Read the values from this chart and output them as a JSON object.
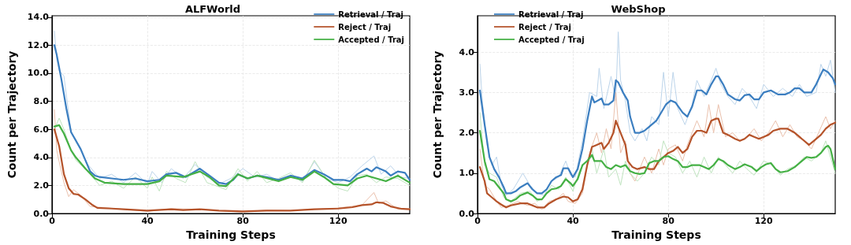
{
  "chart_data": [
    {
      "type": "line",
      "title": "ALFWorld",
      "xlabel": "Training Steps",
      "ylabel": "Count per Trajectory",
      "xlim": [
        0,
        150
      ],
      "xticks": [
        0,
        40,
        80,
        120
      ],
      "ylim": [
        0,
        14.1
      ],
      "yticks": [
        {
          "value": 0,
          "label": "0.0"
        },
        {
          "value": 2,
          "label": "2.0"
        },
        {
          "value": 4,
          "label": "4.0"
        },
        {
          "value": 6,
          "label": "6.0"
        },
        {
          "value": 8,
          "label": "8.0"
        },
        {
          "value": 10,
          "label": "10.0"
        },
        {
          "value": 12,
          "label": "12.0"
        },
        {
          "value": 14,
          "label": "14.0"
        }
      ],
      "grid": true,
      "legend": "top right",
      "marker": "none",
      "line_style": "solid",
      "series": [
        {
          "color": "#bcd4ea",
          "x": [
            1,
            2,
            3,
            5,
            8,
            10,
            15,
            20,
            25,
            30,
            35,
            40,
            42,
            46,
            50,
            55,
            60,
            65,
            70,
            75,
            80,
            85,
            90,
            95,
            100,
            105,
            110,
            115,
            120,
            125,
            130,
            135,
            138,
            142,
            146,
            150
          ],
          "values": [
            13,
            11,
            10.2,
            9.8,
            5.8,
            5.3,
            3.5,
            2.5,
            2.8,
            2.2,
            2.9,
            2.1,
            3.0,
            2.2,
            3.2,
            2.5,
            3.5,
            2.6,
            2.1,
            2.5,
            3.2,
            2.6,
            2.8,
            2.3,
            2.7,
            2.3,
            3.7,
            2.5,
            2.2,
            2.6,
            3.4,
            4.1,
            2.8,
            3.4,
            2.6,
            2.5
          ]
        },
        {
          "color": "#eac0ac",
          "x": [
            1,
            2,
            3,
            5,
            7,
            9,
            12,
            16,
            20,
            30,
            40,
            50,
            60,
            70,
            80,
            90,
            100,
            110,
            120,
            130,
            135,
            137,
            140,
            145,
            150
          ],
          "values": [
            7.4,
            4.5,
            3.7,
            2.2,
            1.2,
            1.7,
            1.3,
            0.5,
            0.45,
            0.3,
            0.15,
            0.35,
            0.3,
            0.2,
            0.1,
            0.25,
            0.2,
            0.3,
            0.4,
            0.6,
            1.5,
            0.7,
            0.9,
            0.3,
            0.35
          ]
        },
        {
          "color": "#bfe3bf",
          "x": [
            1,
            3,
            5,
            8,
            10,
            15,
            20,
            25,
            30,
            35,
            40,
            42,
            45,
            48,
            52,
            56,
            60,
            65,
            70,
            73,
            78,
            82,
            86,
            90,
            95,
            100,
            105,
            110,
            115,
            120,
            124,
            128,
            132,
            136,
            140,
            145,
            150
          ],
          "values": [
            6.0,
            6.8,
            6.0,
            4.5,
            3.8,
            3.0,
            2.0,
            2.3,
            1.8,
            2.6,
            1.8,
            2.6,
            1.6,
            3.0,
            2.5,
            2.2,
            3.7,
            2.2,
            1.9,
            1.7,
            3.2,
            2.3,
            3.0,
            2.2,
            2.5,
            2.9,
            2.2,
            3.8,
            2.5,
            1.8,
            1.6,
            2.7,
            2.8,
            2.2,
            2.6,
            2.5,
            2.0
          ]
        },
        {
          "name": "Retrieval / Traj",
          "color": "#3b7ec0",
          "x": [
            1,
            2,
            4,
            6,
            8,
            10,
            12,
            14,
            16,
            18,
            20,
            25,
            30,
            35,
            40,
            45,
            48,
            52,
            56,
            62,
            66,
            70,
            73,
            76,
            78,
            82,
            86,
            90,
            95,
            100,
            105,
            110,
            114,
            118,
            122,
            125,
            128,
            132,
            134,
            136,
            140,
            142,
            145,
            148,
            150
          ],
          "values": [
            12,
            11.3,
            9.5,
            7.5,
            5.8,
            5.2,
            4.6,
            3.8,
            3.0,
            2.7,
            2.6,
            2.5,
            2.4,
            2.5,
            2.3,
            2.4,
            2.8,
            2.9,
            2.6,
            3.2,
            2.7,
            2.2,
            2.1,
            2.4,
            2.8,
            2.5,
            2.7,
            2.6,
            2.4,
            2.7,
            2.5,
            3.1,
            2.8,
            2.4,
            2.4,
            2.3,
            2.8,
            3.2,
            3.0,
            3.3,
            3.0,
            2.7,
            3.0,
            2.9,
            2.4
          ]
        },
        {
          "name": "Reject / Traj",
          "color": "#b5532a",
          "x": [
            1,
            3,
            5,
            7,
            9,
            11,
            14,
            17,
            19,
            25,
            30,
            40,
            50,
            55,
            62,
            70,
            80,
            90,
            100,
            110,
            120,
            126,
            130,
            134,
            136,
            139,
            142,
            146,
            150
          ],
          "values": [
            6.0,
            4.8,
            2.8,
            1.8,
            1.4,
            1.35,
            1.0,
            0.6,
            0.4,
            0.35,
            0.3,
            0.2,
            0.3,
            0.25,
            0.3,
            0.2,
            0.15,
            0.2,
            0.2,
            0.3,
            0.35,
            0.45,
            0.6,
            0.65,
            0.8,
            0.75,
            0.5,
            0.35,
            0.3
          ]
        },
        {
          "name": "Accepted / Traj",
          "color": "#44b044",
          "x": [
            1,
            3,
            5,
            8,
            10,
            14,
            18,
            22,
            30,
            40,
            45,
            48,
            55,
            62,
            66,
            70,
            73,
            78,
            82,
            86,
            95,
            100,
            105,
            110,
            114,
            118,
            124,
            128,
            132,
            136,
            140,
            145,
            150
          ],
          "values": [
            6.2,
            6.3,
            5.7,
            4.5,
            4.0,
            3.2,
            2.5,
            2.2,
            2.1,
            2.1,
            2.3,
            2.7,
            2.6,
            3.0,
            2.6,
            2.0,
            1.95,
            2.8,
            2.5,
            2.7,
            2.3,
            2.6,
            2.4,
            3.0,
            2.6,
            2.1,
            2.0,
            2.5,
            2.7,
            2.5,
            2.3,
            2.7,
            2.2
          ]
        }
      ]
    },
    {
      "type": "line",
      "title": "WebShop",
      "xlabel": "Training Steps",
      "ylabel": "Count per Trajectory",
      "xlim": [
        0,
        150
      ],
      "xticks": [
        0,
        40,
        80,
        120
      ],
      "ylim": [
        0,
        4.9
      ],
      "yticks": [
        {
          "value": 0,
          "label": "0.0"
        },
        {
          "value": 1,
          "label": "1.0"
        },
        {
          "value": 2,
          "label": "2.0"
        },
        {
          "value": 3,
          "label": "3.0"
        },
        {
          "value": 4,
          "label": "4.0"
        }
      ],
      "grid": true,
      "legend": "top left",
      "marker": "none",
      "line_style": "solid",
      "series": [
        {
          "color": "#bcd4ea",
          "x": [
            1,
            2,
            4,
            6,
            8,
            10,
            12,
            15,
            19,
            22,
            25,
            28,
            31,
            34,
            37,
            39,
            41,
            44,
            47,
            50,
            51,
            53,
            56,
            58,
            59,
            60,
            62,
            64,
            66,
            69,
            71,
            73,
            76,
            78,
            80,
            82,
            84,
            87,
            90,
            92,
            95,
            98,
            100,
            102,
            105,
            108,
            111,
            114,
            117,
            120,
            124,
            128,
            132,
            135,
            138,
            142,
            144,
            146,
            148,
            150
          ],
          "values": [
            3.7,
            2.8,
            1.7,
            1.2,
            1.4,
            0.7,
            0.45,
            0.6,
            1.0,
            0.7,
            0.5,
            0.45,
            0.8,
            0.9,
            1.3,
            0.95,
            0.9,
            1.8,
            3.0,
            2.9,
            3.6,
            2.6,
            3.4,
            2.8,
            4.5,
            3.3,
            2.8,
            2.0,
            1.8,
            2.1,
            1.8,
            2.4,
            2.2,
            3.5,
            2.4,
            3.5,
            2.6,
            2.2,
            2.7,
            3.3,
            2.9,
            3.3,
            3.6,
            3.2,
            2.9,
            2.7,
            3.1,
            2.9,
            2.6,
            3.2,
            2.9,
            3.1,
            2.9,
            3.2,
            2.9,
            3.0,
            3.7,
            3.4,
            3.8,
            3.0
          ]
        },
        {
          "color": "#eac0ac",
          "x": [
            1,
            3,
            5,
            8,
            10,
            13,
            17,
            21,
            24,
            27,
            30,
            33,
            36,
            38,
            41,
            44,
            47,
            50,
            52,
            54,
            56,
            58,
            60,
            62,
            64,
            66,
            70,
            73,
            76,
            78,
            80,
            83,
            86,
            88,
            90,
            92,
            95,
            97,
            99,
            101,
            104,
            107,
            110,
            113,
            116,
            119,
            122,
            125,
            128,
            131,
            134,
            137,
            140,
            143,
            146,
            148,
            150
          ],
          "values": [
            1.6,
            0.7,
            0.6,
            0.3,
            0.15,
            0.2,
            0.3,
            0.2,
            0.25,
            0.1,
            0.3,
            0.35,
            0.5,
            0.3,
            0.25,
            0.5,
            1.5,
            2.0,
            1.5,
            2.1,
            1.6,
            3.0,
            1.5,
            1.8,
            1.0,
            0.8,
            1.4,
            1.0,
            1.6,
            1.2,
            1.6,
            1.7,
            1.3,
            1.7,
            2.0,
            2.3,
            1.9,
            2.7,
            2.0,
            2.7,
            1.9,
            2.0,
            1.8,
            1.9,
            2.1,
            1.8,
            2.0,
            2.3,
            1.9,
            2.2,
            1.9,
            1.8,
            1.6,
            2.0,
            2.4,
            2.1,
            2.3
          ]
        },
        {
          "color": "#bfe3bf",
          "x": [
            1,
            3,
            5,
            8,
            11,
            14,
            18,
            22,
            25,
            28,
            31,
            34,
            37,
            40,
            43,
            46,
            48,
            50,
            53,
            55,
            58,
            60,
            62,
            64,
            67,
            70,
            73,
            76,
            78,
            80,
            83,
            86,
            89,
            92,
            95,
            98,
            101,
            104,
            107,
            110,
            113,
            116,
            120,
            124,
            127,
            130,
            134,
            137,
            140,
            144,
            146,
            148,
            150
          ],
          "values": [
            2.5,
            1.2,
            1.0,
            0.9,
            0.4,
            0.3,
            0.5,
            0.55,
            0.3,
            0.4,
            0.7,
            0.6,
            0.9,
            0.55,
            1.1,
            1.3,
            1.6,
            1.0,
            1.6,
            0.9,
            1.1,
            0.7,
            1.3,
            1.0,
            0.8,
            1.0,
            1.4,
            1.2,
            1.8,
            1.5,
            1.4,
            1.0,
            1.3,
            0.9,
            1.4,
            1.0,
            1.4,
            1.2,
            1.0,
            1.3,
            1.1,
            0.95,
            1.3,
            1.2,
            0.95,
            1.1,
            1.2,
            1.4,
            1.3,
            1.5,
            1.8,
            1.4,
            1.0
          ]
        },
        {
          "name": "Retrieval / Traj",
          "color": "#3b7ec0",
          "x": [
            1,
            3,
            5,
            7,
            9,
            11,
            12,
            14,
            16,
            18,
            21,
            23,
            25,
            27,
            29,
            31,
            33,
            35,
            36,
            38,
            40,
            42,
            44,
            46,
            48,
            49,
            52,
            53,
            55,
            57,
            58,
            59,
            61,
            63,
            64,
            66,
            68,
            70,
            72,
            75,
            77,
            79,
            81,
            83,
            86,
            88,
            90,
            92,
            94,
            96,
            98,
            100,
            101,
            103,
            105,
            108,
            110,
            112,
            114,
            116,
            118,
            120,
            123,
            126,
            129,
            131,
            133,
            135,
            137,
            140,
            142,
            144,
            145,
            147,
            149,
            150
          ],
          "values": [
            3.05,
            2.2,
            1.4,
            1.1,
            0.9,
            0.65,
            0.5,
            0.5,
            0.55,
            0.65,
            0.75,
            0.6,
            0.5,
            0.5,
            0.6,
            0.8,
            0.9,
            0.95,
            1.12,
            1.12,
            0.9,
            1.1,
            1.6,
            2.3,
            2.9,
            2.75,
            2.85,
            2.7,
            2.7,
            2.8,
            3.3,
            3.25,
            3.0,
            2.8,
            2.4,
            2.0,
            2.0,
            2.05,
            2.15,
            2.3,
            2.5,
            2.7,
            2.8,
            2.75,
            2.5,
            2.4,
            2.65,
            3.05,
            3.05,
            2.95,
            3.2,
            3.4,
            3.4,
            3.2,
            2.95,
            2.83,
            2.8,
            2.93,
            2.95,
            2.83,
            2.83,
            3.0,
            3.05,
            2.95,
            2.95,
            3.0,
            3.1,
            3.1,
            3.0,
            3.0,
            3.2,
            3.45,
            3.57,
            3.5,
            3.35,
            3.2
          ]
        },
        {
          "name": "Reject / Traj",
          "color": "#b5532a",
          "x": [
            1,
            3,
            4,
            6,
            8,
            10,
            12,
            14,
            18,
            21,
            23,
            25,
            28,
            30,
            33,
            36,
            38,
            40,
            42,
            44,
            46,
            48,
            50,
            52,
            53,
            55,
            57,
            58,
            60,
            62,
            63,
            65,
            67,
            70,
            72,
            74,
            76,
            78,
            80,
            82,
            84,
            86,
            88,
            90,
            92,
            94,
            96,
            98,
            100,
            101,
            103,
            105,
            108,
            110,
            112,
            114,
            116,
            118,
            120,
            122,
            124,
            127,
            130,
            133,
            136,
            139,
            141,
            144,
            146,
            148,
            150
          ],
          "values": [
            1.15,
            0.8,
            0.5,
            0.4,
            0.3,
            0.22,
            0.15,
            0.2,
            0.25,
            0.25,
            0.2,
            0.15,
            0.15,
            0.25,
            0.35,
            0.42,
            0.4,
            0.3,
            0.35,
            0.6,
            1.2,
            1.65,
            1.7,
            1.75,
            1.6,
            1.75,
            2.0,
            2.3,
            2.0,
            1.7,
            1.3,
            1.15,
            1.1,
            1.15,
            1.1,
            1.1,
            1.3,
            1.4,
            1.5,
            1.55,
            1.65,
            1.5,
            1.6,
            1.9,
            2.05,
            2.05,
            2.0,
            2.3,
            2.35,
            2.35,
            2.0,
            1.95,
            1.85,
            1.8,
            1.85,
            1.95,
            1.9,
            1.85,
            1.9,
            1.95,
            2.05,
            2.1,
            2.1,
            2.0,
            1.85,
            1.7,
            1.8,
            1.95,
            2.1,
            2.2,
            2.25
          ]
        },
        {
          "name": "Accepted / Traj",
          "color": "#44b044",
          "x": [
            1,
            3,
            5,
            7,
            9,
            11,
            12,
            14,
            16,
            18,
            21,
            23,
            25,
            27,
            29,
            31,
            33,
            35,
            37,
            39,
            40,
            42,
            44,
            46,
            48,
            49,
            52,
            54,
            56,
            58,
            60,
            62,
            64,
            66,
            68,
            70,
            72,
            74,
            76,
            78,
            80,
            82,
            84,
            86,
            88,
            90,
            93,
            95,
            97,
            99,
            101,
            103,
            105,
            108,
            110,
            112,
            115,
            117,
            119,
            121,
            123,
            125,
            127,
            130,
            133,
            136,
            138,
            140,
            142,
            144,
            146,
            147,
            148,
            150
          ],
          "values": [
            2.05,
            1.3,
            0.85,
            0.8,
            0.65,
            0.5,
            0.35,
            0.3,
            0.35,
            0.45,
            0.52,
            0.45,
            0.35,
            0.35,
            0.5,
            0.6,
            0.62,
            0.68,
            0.85,
            0.75,
            0.68,
            0.85,
            1.2,
            1.3,
            1.45,
            1.3,
            1.3,
            1.15,
            1.1,
            1.2,
            1.15,
            1.2,
            1.05,
            1.0,
            0.98,
            1.0,
            1.25,
            1.3,
            1.3,
            1.4,
            1.42,
            1.35,
            1.3,
            1.15,
            1.15,
            1.2,
            1.2,
            1.15,
            1.1,
            1.2,
            1.35,
            1.3,
            1.2,
            1.1,
            1.15,
            1.22,
            1.15,
            1.05,
            1.15,
            1.22,
            1.25,
            1.1,
            1.02,
            1.05,
            1.15,
            1.3,
            1.4,
            1.38,
            1.4,
            1.5,
            1.65,
            1.68,
            1.6,
            1.1
          ]
        }
      ]
    }
  ]
}
